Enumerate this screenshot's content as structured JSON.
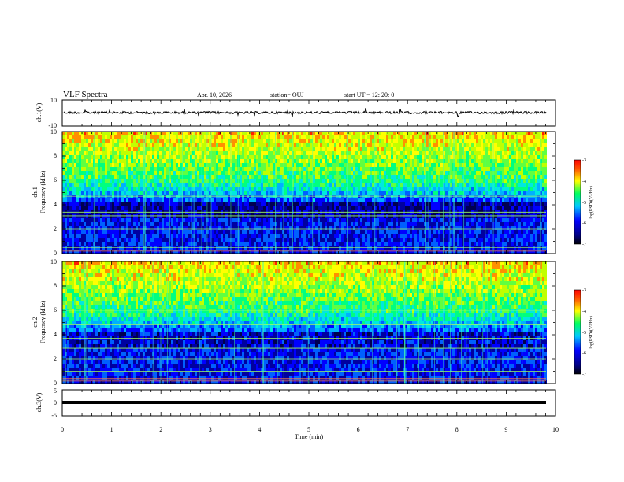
{
  "header": {
    "title": "VLF Spectra",
    "date": "Apr. 10, 2026",
    "station": "station= OUJ",
    "start": "start  UT  =   12: 20: 0"
  },
  "chart_data": [
    {
      "type": "line",
      "name": "ch1-waveform",
      "ylabel": "ch.1(V)",
      "ylim": [
        -10,
        10
      ],
      "yticks": [
        "10",
        "-10"
      ],
      "xlim": [
        0,
        10
      ]
    },
    {
      "type": "heatmap",
      "name": "ch1-spectrogram",
      "ylabel_top": "ch.1",
      "ylabel": "Frequency (kHz)",
      "ylim": [
        0,
        10
      ],
      "yticks": [
        "0",
        "2",
        "4",
        "6",
        "8",
        "10"
      ],
      "xlim": [
        0,
        10
      ],
      "colorbar": {
        "label": "log(PSD)(V²/Hz)",
        "range": [
          -7,
          -3
        ],
        "ticks": [
          "-3",
          "-4",
          "-5",
          "-6",
          "-7"
        ]
      }
    },
    {
      "type": "heatmap",
      "name": "ch2-spectrogram",
      "ylabel_top": "ch.2",
      "ylabel": "Frequency (kHz)",
      "ylim": [
        0,
        10
      ],
      "yticks": [
        "0",
        "2",
        "4",
        "6",
        "8",
        "10"
      ],
      "xlim": [
        0,
        10
      ],
      "colorbar": {
        "label": "log(PSD)(V²/Hz)",
        "range": [
          -7,
          -3
        ],
        "ticks": [
          "-3",
          "-4",
          "-5",
          "-6",
          "-7"
        ]
      }
    },
    {
      "type": "line",
      "name": "ch3-waveform",
      "ylabel": "ch.3(V)",
      "ylim": [
        -5,
        5
      ],
      "yticks": [
        "5",
        "0",
        "-5"
      ],
      "constant_value": -1.1,
      "xlim": [
        0,
        10
      ],
      "xlabel": "Time (min)",
      "xticks": [
        "0",
        "1",
        "2",
        "3",
        "4",
        "5",
        "6",
        "7",
        "8",
        "9",
        "10"
      ]
    }
  ]
}
